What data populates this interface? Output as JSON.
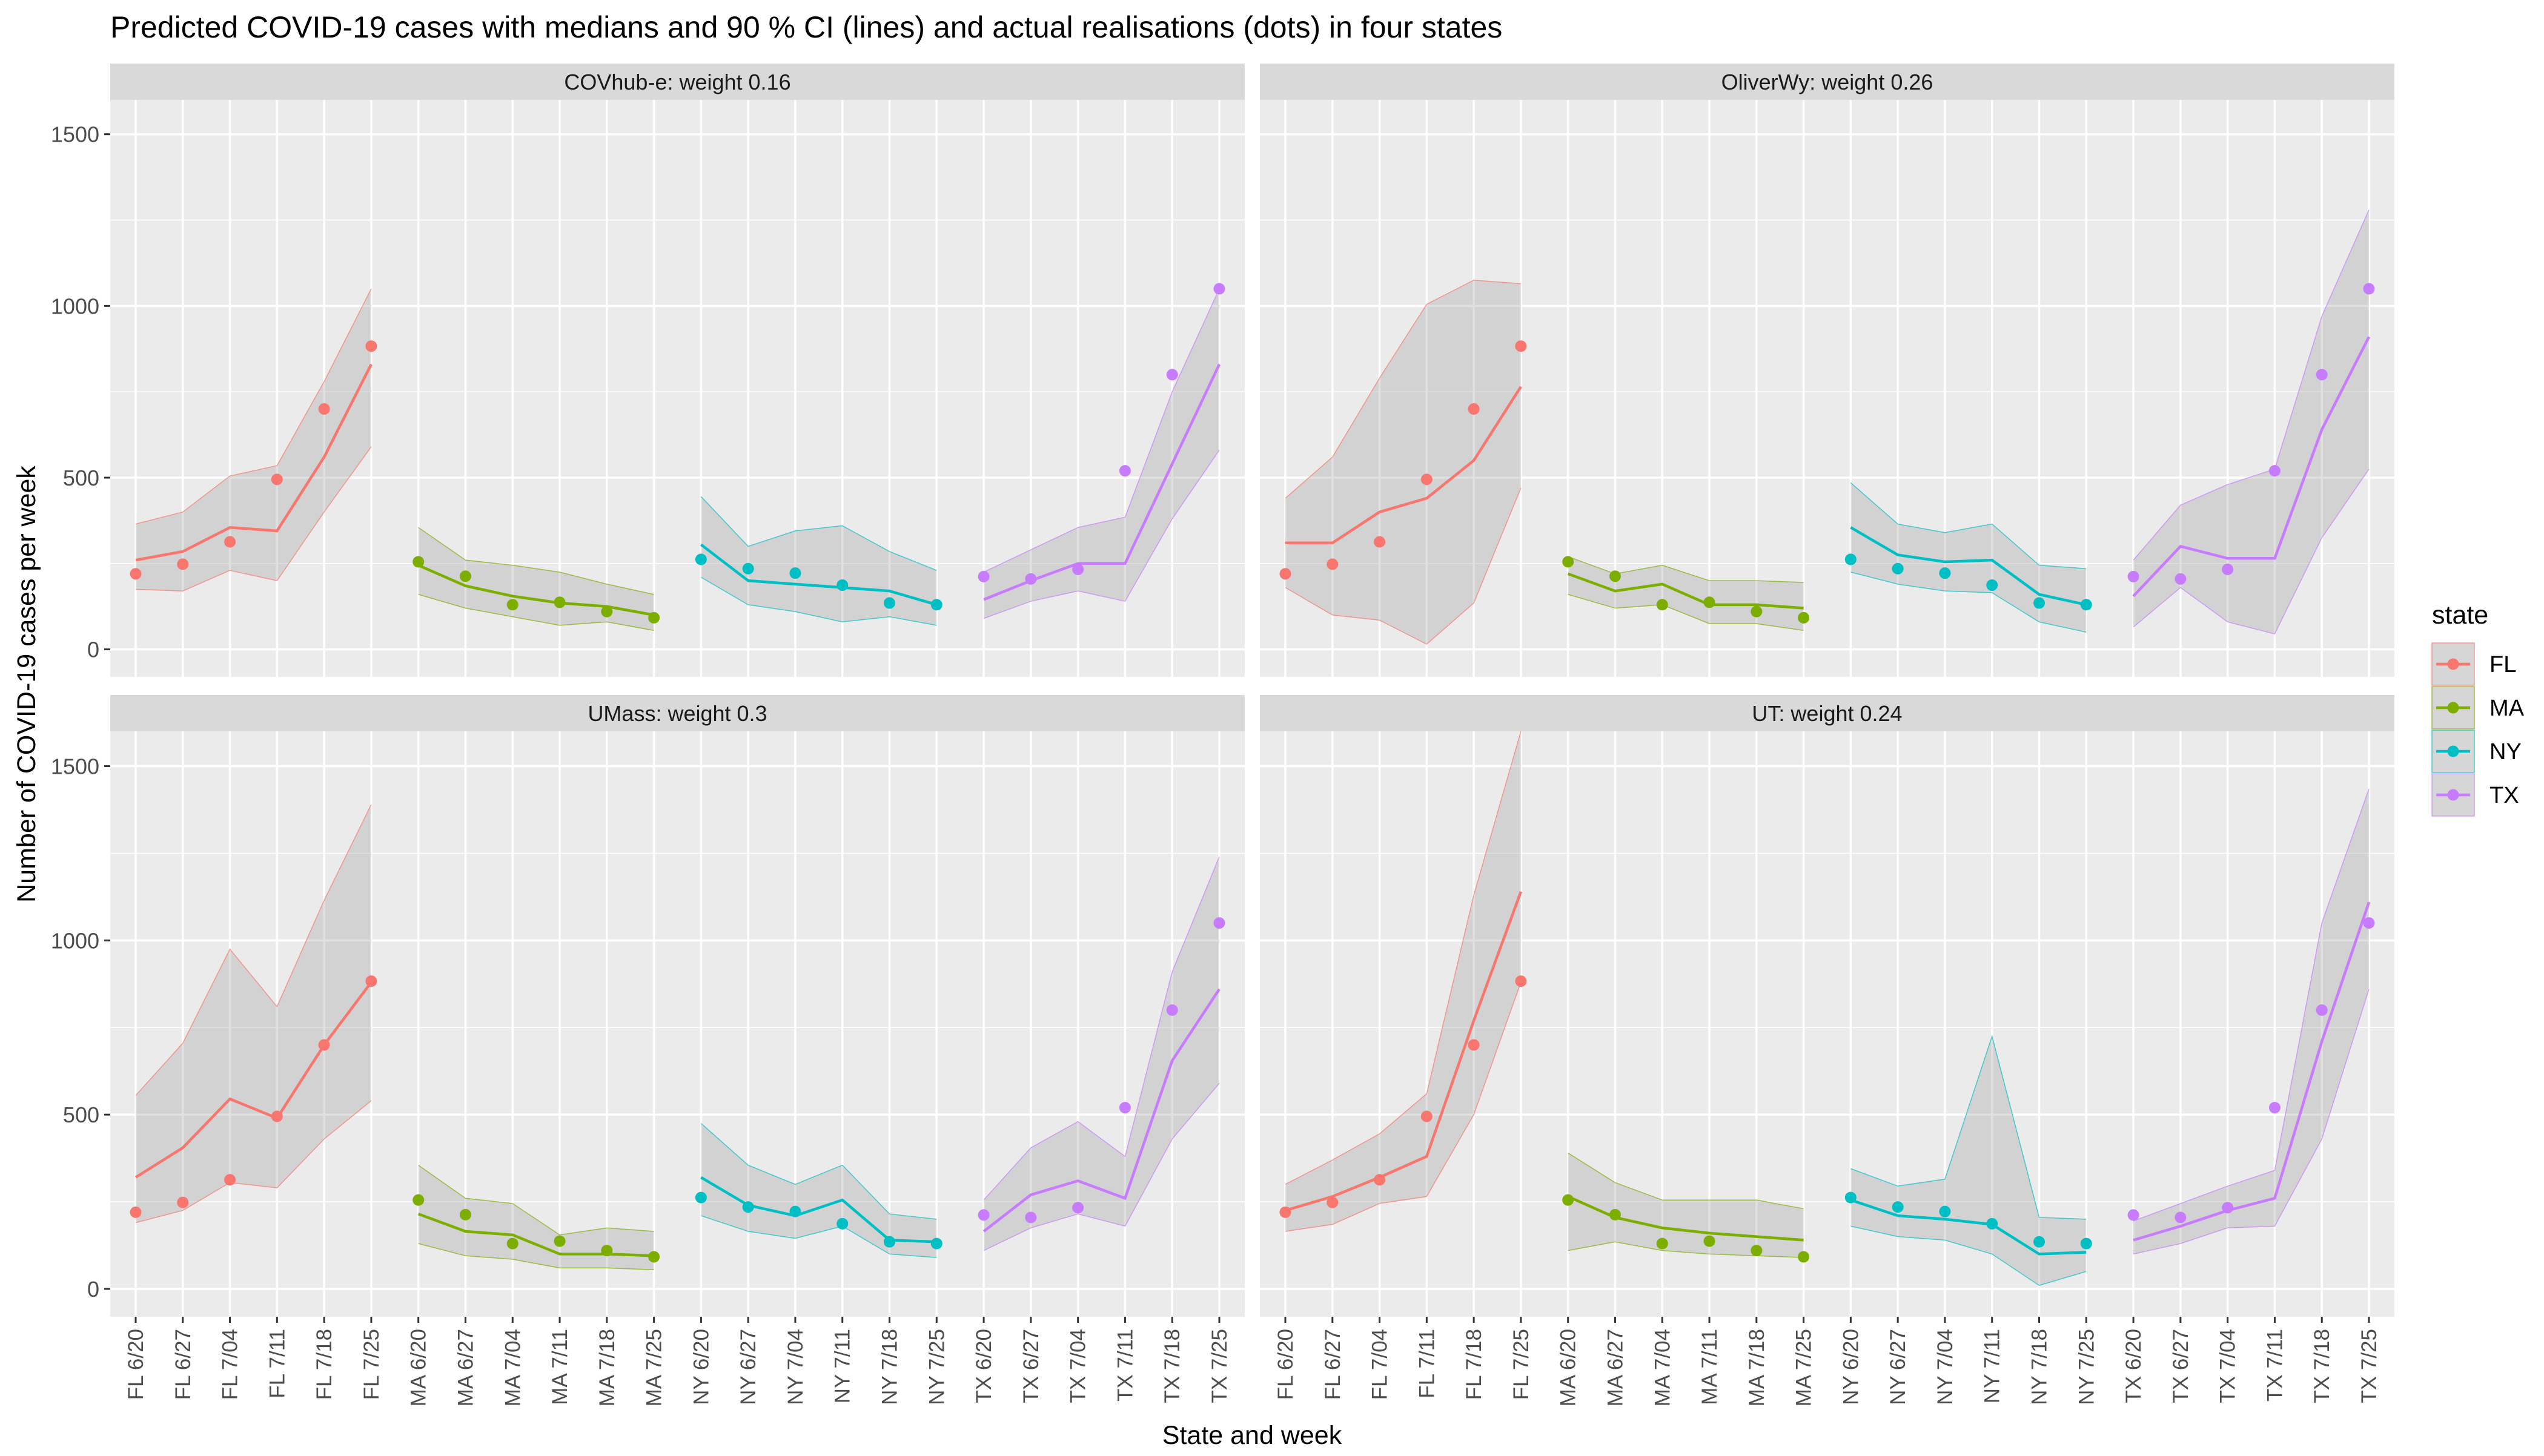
{
  "chart_data": {
    "type": "line",
    "title": "Predicted COVID-19 cases with medians and 90 % CI (lines) and actual realisations (dots) in four states",
    "xlabel": "State and week",
    "ylabel": "Number of COVID-19 cases per week",
    "ylim": [
      -80,
      1600
    ],
    "yticks": [
      0,
      500,
      1000,
      1500
    ],
    "grid": true,
    "legend": {
      "title": "state",
      "position": "right",
      "entries": [
        "FL",
        "MA",
        "NY",
        "TX"
      ]
    },
    "categories": [
      "FL 6/20",
      "FL 6/27",
      "FL 7/04",
      "FL 7/11",
      "FL 7/18",
      "FL 7/25",
      "MA 6/20",
      "MA 6/27",
      "MA 7/04",
      "MA 7/11",
      "MA 7/18",
      "MA 7/25",
      "NY 6/20",
      "NY 6/27",
      "NY 7/04",
      "NY 7/11",
      "NY 7/18",
      "NY 7/25",
      "TX 6/20",
      "TX 6/27",
      "TX 7/04",
      "TX 7/11",
      "TX 7/18",
      "TX 7/25"
    ],
    "state_colors": {
      "FL": "#F8766D",
      "MA": "#7CAE00",
      "NY": "#00BFC4",
      "TX": "#C77CFF"
    },
    "actual": {
      "FL": [
        220,
        248,
        313,
        495,
        700,
        883
      ],
      "MA": [
        255,
        213,
        130,
        137,
        110,
        92
      ],
      "NY": [
        262,
        235,
        222,
        187,
        135,
        130
      ],
      "TX": [
        212,
        205,
        233,
        520,
        800,
        1050
      ]
    },
    "panels": [
      {
        "label": "COVhub-e: weight 0.16",
        "median": {
          "FL": [
            260,
            285,
            355,
            345,
            560,
            830
          ],
          "MA": [
            245,
            185,
            155,
            135,
            125,
            100
          ],
          "NY": [
            305,
            200,
            190,
            180,
            170,
            130
          ],
          "TX": [
            145,
            200,
            250,
            250,
            540,
            830
          ]
        },
        "lower": {
          "FL": [
            175,
            170,
            230,
            200,
            400,
            590
          ],
          "MA": [
            160,
            120,
            95,
            70,
            80,
            55
          ],
          "NY": [
            210,
            130,
            110,
            80,
            95,
            70
          ],
          "TX": [
            90,
            140,
            170,
            140,
            380,
            580
          ]
        },
        "upper": {
          "FL": [
            365,
            400,
            505,
            535,
            780,
            1050
          ],
          "MA": [
            355,
            260,
            245,
            225,
            190,
            160
          ],
          "NY": [
            445,
            300,
            345,
            360,
            285,
            230
          ],
          "TX": [
            225,
            290,
            355,
            385,
            750,
            1050
          ]
        }
      },
      {
        "label": "OliverWy: weight 0.26",
        "median": {
          "FL": [
            310,
            310,
            400,
            440,
            550,
            765
          ],
          "MA": [
            220,
            170,
            190,
            130,
            130,
            120
          ],
          "NY": [
            355,
            275,
            255,
            260,
            160,
            130
          ],
          "TX": [
            155,
            300,
            265,
            265,
            640,
            910
          ]
        },
        "lower": {
          "FL": [
            180,
            100,
            85,
            15,
            135,
            470
          ],
          "MA": [
            160,
            120,
            130,
            75,
            75,
            55
          ],
          "NY": [
            225,
            190,
            170,
            165,
            80,
            50
          ],
          "TX": [
            65,
            180,
            80,
            45,
            325,
            525
          ]
        },
        "upper": {
          "FL": [
            440,
            560,
            790,
            1005,
            1075,
            1065
          ],
          "MA": [
            270,
            220,
            245,
            200,
            200,
            195
          ],
          "NY": [
            485,
            365,
            340,
            365,
            245,
            235
          ],
          "TX": [
            260,
            420,
            480,
            525,
            970,
            1280
          ]
        }
      },
      {
        "label": "UMass: weight 0.3",
        "median": {
          "FL": [
            320,
            405,
            545,
            490,
            700,
            880
          ],
          "MA": [
            215,
            165,
            155,
            100,
            100,
            95
          ],
          "NY": [
            320,
            240,
            210,
            255,
            140,
            135
          ],
          "TX": [
            165,
            270,
            310,
            260,
            655,
            860
          ]
        },
        "lower": {
          "FL": [
            190,
            225,
            305,
            290,
            430,
            540
          ],
          "MA": [
            130,
            95,
            85,
            60,
            60,
            55
          ],
          "NY": [
            210,
            165,
            145,
            180,
            100,
            90
          ],
          "TX": [
            110,
            175,
            215,
            180,
            430,
            590
          ]
        },
        "upper": {
          "FL": [
            555,
            705,
            975,
            810,
            1115,
            1390
          ],
          "MA": [
            355,
            260,
            245,
            155,
            175,
            165
          ],
          "NY": [
            475,
            355,
            300,
            355,
            215,
            200
          ],
          "TX": [
            255,
            405,
            480,
            380,
            910,
            1240
          ]
        }
      },
      {
        "label": "UT: weight 0.24",
        "median": {
          "FL": [
            225,
            265,
            320,
            380,
            770,
            1140
          ],
          "MA": [
            265,
            205,
            175,
            160,
            150,
            140
          ],
          "NY": [
            255,
            210,
            200,
            185,
            100,
            105
          ],
          "TX": [
            140,
            180,
            225,
            260,
            710,
            1110
          ]
        },
        "lower": {
          "FL": [
            165,
            185,
            245,
            265,
            500,
            880
          ],
          "MA": [
            110,
            135,
            110,
            100,
            95,
            90
          ],
          "NY": [
            180,
            150,
            140,
            100,
            10,
            50
          ],
          "TX": [
            100,
            130,
            175,
            180,
            430,
            860
          ]
        },
        "upper": {
          "FL": [
            300,
            370,
            445,
            560,
            1130,
            1600
          ],
          "MA": [
            390,
            305,
            255,
            255,
            255,
            230
          ],
          "NY": [
            345,
            295,
            315,
            725,
            205,
            200
          ],
          "TX": [
            195,
            245,
            295,
            340,
            1050,
            1435
          ]
        }
      }
    ]
  }
}
